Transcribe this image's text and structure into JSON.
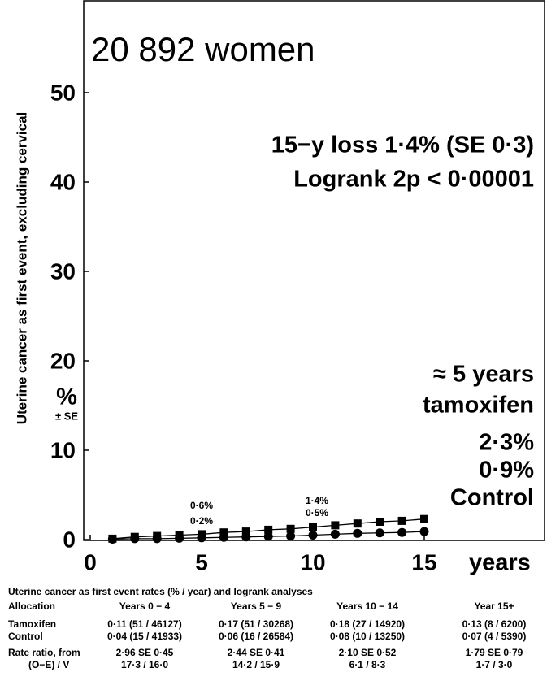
{
  "chart_data": {
    "type": "line",
    "title": "20 892 women",
    "ylabel": "Uterine cancer as first event, excluding cervical",
    "yunit": "%",
    "yunit_sub": "± SE",
    "xlabel": "years",
    "annotations": [
      "15−y loss 1·4% (SE 0·3)",
      "Logrank 2p < 0·00001",
      "≈ 5 years",
      "tamoxifen",
      "2·3%",
      "0·9%",
      "Control",
      "0·6%",
      "0·2%",
      "1·4%",
      "0·5%"
    ],
    "x": [
      1,
      2,
      3,
      4,
      5,
      6,
      7,
      8,
      9,
      10,
      11,
      12,
      13,
      14,
      15
    ],
    "series": [
      {
        "name": "tamoxifen",
        "color": "#000000",
        "marker": "square",
        "values": [
          0.1,
          0.3,
          0.4,
          0.5,
          0.6,
          0.8,
          0.9,
          1.1,
          1.2,
          1.4,
          1.6,
          1.8,
          2.0,
          2.1,
          2.3
        ]
      },
      {
        "name": "Control",
        "color": "#000000",
        "marker": "circle",
        "values": [
          0.05,
          0.1,
          0.1,
          0.15,
          0.2,
          0.25,
          0.3,
          0.35,
          0.4,
          0.5,
          0.6,
          0.7,
          0.75,
          0.8,
          0.9
        ]
      }
    ],
    "xlim": [
      0,
      20
    ],
    "xticks": [
      0,
      5,
      10,
      15
    ],
    "ylim": [
      0,
      60
    ],
    "yticks": [
      0,
      10,
      20,
      30,
      40,
      50
    ]
  },
  "table": {
    "title": "Uterine cancer as first event rates (% / year) and logrank analyses",
    "header": [
      "Allocation",
      "Years 0 − 4",
      "Years 5 − 9",
      "Years 10 − 14",
      "Year 15+"
    ],
    "rows": [
      [
        "Tamoxifen",
        "0·11 (51 / 46127)",
        "0·17 (51 / 30268)",
        "0·18 (27 / 14920)",
        "0·13 (8 / 6200)"
      ],
      [
        "Control",
        "0·04 (15 / 41933)",
        "0·06 (16 / 26584)",
        "0·08 (10 / 13250)",
        "0·07 (4 / 5390)"
      ],
      [
        "Rate ratio, from",
        "2·96 SE 0·45",
        "2·44 SE 0·41",
        "2·10 SE 0·52",
        "1·79 SE 0·79"
      ],
      [
        "(O−E) / V",
        "17·3 / 16·0",
        "14·2 / 15·9",
        "6·1 / 8·3",
        "1·7 / 3·0"
      ]
    ]
  }
}
